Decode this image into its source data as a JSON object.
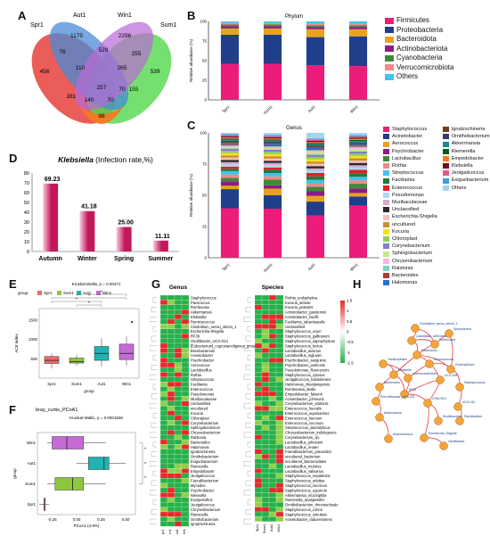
{
  "panels": {
    "A": "A",
    "B": "B",
    "C": "C",
    "D": "D",
    "E": "E",
    "F": "F",
    "G": "G",
    "H": "H"
  },
  "chart_data": [
    {
      "panel": "A",
      "type": "venn",
      "sets": [
        "Spr1",
        "Aut1",
        "Win1",
        "Sum1"
      ],
      "colors": [
        "#e8413c",
        "#4a8bd6",
        "#b86ad6",
        "#52d84b",
        "#f57a20"
      ],
      "regions": [
        {
          "id": "spr_only",
          "value": "456"
        },
        {
          "id": "aut_only",
          "value": "1175"
        },
        {
          "id": "win_only",
          "value": "2296"
        },
        {
          "id": "sum_only",
          "value": "539"
        },
        {
          "id": "spr_aut",
          "value": "76"
        },
        {
          "id": "aut_win",
          "value": "529"
        },
        {
          "id": "win_sum",
          "value": "255"
        },
        {
          "id": "spr_aut_win",
          "value": "110"
        },
        {
          "id": "aut_win_sum",
          "value": "265"
        },
        {
          "id": "win_sum2",
          "value": "70"
        },
        {
          "id": "sum_win",
          "value": "155"
        },
        {
          "id": "spr_win",
          "value": "281"
        },
        {
          "id": "all",
          "value": "257"
        },
        {
          "id": "spr_sum_x",
          "value": "140"
        },
        {
          "id": "aut_sum",
          "value": "70"
        },
        {
          "id": "spr_sum",
          "value": "88"
        }
      ]
    },
    {
      "panel": "B",
      "type": "bar",
      "title": "Phylum",
      "ylabel": "Relative abundance (%)",
      "categories": [
        "Spr1",
        "Sum1",
        "Aut1",
        "Win1"
      ],
      "series": [
        {
          "name": "Firmicutes",
          "color": "#ec1c7a",
          "values": [
            0.46,
            0.46,
            0.44,
            0.43
          ]
        },
        {
          "name": "Proteobacteria",
          "color": "#1f3f8a",
          "values": [
            0.37,
            0.37,
            0.36,
            0.38
          ]
        },
        {
          "name": "Bacteroidota",
          "color": "#eaa21b",
          "values": [
            0.08,
            0.08,
            0.1,
            0.09
          ]
        },
        {
          "name": "Actinobacteriota",
          "color": "#8b1c86",
          "values": [
            0.03,
            0.03,
            0.03,
            0.03
          ]
        },
        {
          "name": "Cyanobacteria",
          "color": "#3f8a3a",
          "values": [
            0.02,
            0.02,
            0.02,
            0.02
          ]
        },
        {
          "name": "Verrucomicrobiota",
          "color": "#f08a8a",
          "values": [
            0.02,
            0.02,
            0.02,
            0.02
          ]
        },
        {
          "name": "Others",
          "color": "#3fc3ef",
          "values": [
            0.02,
            0.02,
            0.03,
            0.03
          ]
        }
      ],
      "yticks": [
        "0",
        "25",
        "50",
        "75",
        "100"
      ]
    },
    {
      "panel": "C",
      "type": "bar",
      "title": "Genus",
      "ylabel": "Relative abundance (%)",
      "categories": [
        "Spr1",
        "Sum1",
        "Aut1",
        "Win1"
      ],
      "series": [
        {
          "name": "Staphylococcus",
          "color": "#ec1c7a",
          "values": [
            0.44,
            0.44,
            0.37,
            0.45
          ]
        },
        {
          "name": "Acinetobacter",
          "color": "#1f3f8a",
          "values": [
            0.17,
            0.12,
            0.12,
            0.08
          ]
        },
        {
          "name": "Aerococcus",
          "color": "#eaa21b",
          "values": [
            0.03,
            0.06,
            0.05,
            0.03
          ]
        },
        {
          "name": "Psychrobacter",
          "color": "#8b1c86",
          "values": [
            0.04,
            0.03,
            0.04,
            0.04
          ]
        },
        {
          "name": "Lactobacillus",
          "color": "#3f8a3a",
          "values": [
            0.03,
            0.05,
            0.04,
            0.04
          ]
        },
        {
          "name": "Rothia",
          "color": "#f08a8a",
          "values": [
            0.03,
            0.03,
            0.03,
            0.03
          ]
        },
        {
          "name": "Streptococcus",
          "color": "#3fc3ef",
          "values": [
            0.03,
            0.03,
            0.03,
            0.03
          ]
        },
        {
          "name": "Facklamia",
          "color": "#1b7d3a",
          "values": [
            0.02,
            0.03,
            0.03,
            0.03
          ]
        },
        {
          "name": "Enterococcus",
          "color": "#e51e25",
          "values": [
            0.02,
            0.02,
            0.03,
            0.03
          ]
        },
        {
          "name": "Pseudomonas",
          "color": "#a9d9f2",
          "values": [
            0.02,
            0.02,
            0.02,
            0.02
          ]
        },
        {
          "name": "Muribaculaceae",
          "color": "#d8a8d0",
          "values": [
            0.02,
            0.02,
            0.02,
            0.02
          ]
        },
        {
          "name": "Unclassified",
          "color": "#2a2a2a",
          "values": [
            0.02,
            0.02,
            0.02,
            0.02
          ]
        },
        {
          "name": "Escherichia-Shigella",
          "color": "#f4c0c0",
          "values": [
            0.02,
            0.02,
            0.02,
            0.02
          ]
        },
        {
          "name": "uncultured",
          "color": "#d18c2a",
          "values": [
            0.02,
            0.02,
            0.02,
            0.02
          ]
        },
        {
          "name": "Kocuria",
          "color": "#f7e11a",
          "values": [
            0.02,
            0.02,
            0.02,
            0.02
          ]
        },
        {
          "name": "Chloroplast",
          "color": "#8fcf5a",
          "values": [
            0.02,
            0.02,
            0.02,
            0.02
          ]
        },
        {
          "name": "Corynebacterium",
          "color": "#7f7fcf",
          "values": [
            0.02,
            0.02,
            0.02,
            0.02
          ]
        },
        {
          "name": "Sphingobacterium",
          "color": "#c6e88a",
          "values": [
            0.01,
            0.01,
            0.02,
            0.02
          ]
        },
        {
          "name": "Chryseobacterium",
          "color": "#f7b5e0",
          "values": [
            0.01,
            0.01,
            0.01,
            0.01
          ]
        },
        {
          "name": "Ralstonia",
          "color": "#7ad6c2",
          "values": [
            0.01,
            0.01,
            0.01,
            0.01
          ]
        },
        {
          "name": "Bacteroides",
          "color": "#b03a2e",
          "values": [
            0.01,
            0.01,
            0.01,
            0.01
          ]
        },
        {
          "name": "Halomonas",
          "color": "#2a6fd6",
          "values": [
            0.01,
            0.01,
            0.01,
            0.01
          ]
        },
        {
          "name": "Ignatzschineria",
          "color": "#6b3f1c",
          "values": [
            0.01,
            0.01,
            0.01,
            0.01
          ]
        },
        {
          "name": "Ornithobacterium",
          "color": "#3a3a6b",
          "values": [
            0.01,
            0.01,
            0.01,
            0.01
          ]
        },
        {
          "name": "Akkermansia",
          "color": "#1a8a8a",
          "values": [
            0.01,
            0.01,
            0.01,
            0.01
          ]
        },
        {
          "name": "Riemerella",
          "color": "#0a5a2a",
          "values": [
            0.01,
            0.01,
            0.01,
            0.01
          ]
        },
        {
          "name": "Empedobacter",
          "color": "#f27a1a",
          "values": [
            0.01,
            0.01,
            0.01,
            0.01
          ]
        },
        {
          "name": "Klebsiella",
          "color": "#7a0a1a",
          "values": [
            0.01,
            0.01,
            0.01,
            0.01
          ]
        },
        {
          "name": "Jeotgalicoccus",
          "color": "#e05a8a",
          "values": [
            0.01,
            0.01,
            0.01,
            0.01
          ]
        },
        {
          "name": "Exiguobacterium",
          "color": "#3aa0e0",
          "values": [
            0.01,
            0.01,
            0.01,
            0.01
          ]
        },
        {
          "name": "Others",
          "color": "#9fd6f0",
          "values": [
            0.01,
            0.02,
            0.05,
            0.02
          ]
        }
      ],
      "yticks": [
        "0",
        "25",
        "50",
        "75",
        "100"
      ]
    },
    {
      "panel": "D",
      "type": "bar",
      "title_italic": "Klebsiella",
      "title_rest": " (Infection rate,%)",
      "categories": [
        "Autumn",
        "Winter",
        "Spring",
        "Summer"
      ],
      "values": [
        69.23,
        41.18,
        25.0,
        11.11
      ],
      "value_labels": [
        "69.23",
        "41.18",
        "25.00",
        "11.11"
      ],
      "ylim": [
        0,
        80
      ],
      "yticks": [
        "0",
        "10",
        "20",
        "30",
        "40",
        "50",
        "60",
        "70",
        "80"
      ],
      "colors": [
        "#c2185b",
        "#f8cfe0"
      ]
    },
    {
      "panel": "E",
      "type": "box",
      "subtitle": "Kruskal-Wallis, p = 0.00471",
      "legend_title": "group",
      "groups": [
        "Spr1",
        "Sum1",
        "Aut1",
        "Win1"
      ],
      "colors": [
        "#f06a6a",
        "#8dc63f",
        "#21b3b3",
        "#c66ad6"
      ],
      "ylabel": "ACE index",
      "xlabel": "group",
      "yticks": [
        "500",
        "1000",
        "1500"
      ],
      "ylim": [
        0,
        1800
      ],
      "boxes": [
        {
          "min": 250,
          "q1": 380,
          "median": 460,
          "q3": 560,
          "max": 640
        },
        {
          "min": 330,
          "q1": 390,
          "median": 430,
          "q3": 520,
          "max": 600
        },
        {
          "min": 300,
          "q1": 460,
          "median": 640,
          "q3": 820,
          "max": 1040
        },
        {
          "min": 320,
          "q1": 480,
          "median": 640,
          "q3": 880,
          "max": 1080
        }
      ],
      "signif": [
        "*",
        "*",
        "*",
        "*"
      ]
    },
    {
      "panel": "F",
      "type": "box",
      "title": "bray_curtis_PCoA1",
      "subtitle": "Kruskal-Wallis, p = 0.0001508",
      "ylabel": "group",
      "xlabel": "PCoA1 (4.8%)",
      "groups": [
        "Win1",
        "Aut1",
        "Sum1",
        "Spr1"
      ],
      "colors": [
        "#c66ad6",
        "#21b3b3",
        "#8dc63f",
        "#f06a6a"
      ],
      "xticks": [
        "-0.25",
        "0.00",
        "0.25",
        "0.50"
      ],
      "xlim": [
        -0.4,
        0.6
      ],
      "boxes": [
        {
          "min": -0.3,
          "q1": -0.25,
          "median": -0.1,
          "q3": 0.07,
          "max": 0.3
        },
        {
          "min": 0.0,
          "q1": 0.12,
          "median": 0.28,
          "q3": 0.33,
          "max": 0.5
        },
        {
          "min": -0.3,
          "q1": -0.22,
          "median": -0.04,
          "q3": 0.07,
          "max": 0.3
        },
        {
          "min": -0.38,
          "q1": -0.33,
          "median": -0.33,
          "q3": -0.33,
          "max": -0.28
        }
      ],
      "signif": [
        "*",
        "*",
        "*"
      ]
    },
    {
      "panel": "G",
      "type": "heatmap",
      "left_title": "Genus",
      "right_title": "Species",
      "colorbar_ticks": [
        "1.5",
        "1",
        "0.5",
        "0",
        "-0.5",
        "-1",
        "-1.5"
      ],
      "genus": [
        "Staphylococcus",
        "Paracoccus",
        "Rombousia",
        "Akkermansia",
        "Klebsiella",
        "Ruminococcus",
        "Clostridium_sensu_stricto_1",
        "Escherichia-Shigella",
        "RF39",
        "Oscillibacter_UCG-014",
        "[Eubacterium]_coprostanoligenes_group",
        "Brevibacterium",
        "Acinetobacter",
        "Psychrobacter",
        "Aerococcus",
        "Lactobacillus",
        "Rothia",
        "Streptococcus",
        "Facklamia",
        "Enterococcus",
        "Pseudomonas",
        "Muribaculaceae",
        "Unclassified",
        "uncultured",
        "Kocuria",
        "Chloroplast",
        "Corynebacterium",
        "Sphingobacterium",
        "Chryseobacterium",
        "Ralstonia",
        "Bacteroides",
        "Halomonas",
        "Ignatzschineria",
        "Ornithobacterium",
        "Exiguobacterium",
        "Riemerella",
        "Empedobacter",
        "Jeotgalicoccus",
        "Faecalibacterium",
        "Myroides",
        "Psychrobacter",
        "Weissella",
        "Erysipelothrix",
        "Jeotgalicoccus",
        "Chryseobacterium",
        "Riemerella",
        "Ornithobacterium",
        "Ignatzschineria",
        "uncultured",
        "Bacteroides"
      ],
      "species": [
        "Rothia_endophytica",
        "Kocuria_atrinae",
        "Kocuria_palustris",
        "Acinetobacter_gandensis",
        "Acinetobacter_lwoffii",
        "Facklamia_tabacinasalis",
        "Unclassified",
        "Staphylococcus_sciuri",
        "Staphylococcus_gallinarum",
        "Staphylococcus_saprophyticus",
        "Staphylococcus_lentus",
        "Lactobacillus_aviarius",
        "Lactobacillus_ingluviei",
        "Psychrobacter_sanguinis",
        "Psychrobacter_pulmonis",
        "Pseudomonas_fluorescens",
        "Staphylococcus_xylosus",
        "Jeotgalicoccus_halotolerans",
        "Halomonas_zhanjiangensis",
        "Romboutsia_ilealis",
        "Empedobacter_falsenii",
        "Acinetobacter_johnsonii",
        "Corynebacterium_stationis",
        "Enterococcus_faecalis",
        "Enterococcus_aquimarinus",
        "Enterococcus_faecium",
        "Enterococcus_cecorum",
        "Streptococcus_alactolyticus",
        "Chryseobacterium_indologenes",
        "Corynebacterium_sp.",
        "Lactobacillus_johnsonii",
        "Lactobacillus_reuteri",
        "Faecalibacterium_prausnitzii",
        "uncultured_bacterium",
        "uncultured_Bacteroidales",
        "Lactobacillus_murinus",
        "Lactobacillus_salivarius",
        "Staphylococcus_nepalensis",
        "Staphylococcus_arlettae",
        "Staphylococcus_succinus",
        "Staphylococcus_equorum",
        "Akkermansia_muciniphila",
        "Riemerella_anatipestifer",
        "Ornithobacterium_rhinotracheale",
        "Staphylococcus_cohnii",
        "Staphylococcus_simulans",
        "Acinetobacter_radioresistens"
      ],
      "columns": [
        "Spr1",
        "Sum1",
        "Aut1",
        "Win1"
      ]
    },
    {
      "panel": "H",
      "type": "network",
      "node_color": "#f4a43a",
      "edge_color": "#e53a3a",
      "nodes": [
        {
          "id": "n1",
          "label": "Clostridium_sensu_stricto_1"
        },
        {
          "id": "n2",
          "label": "Candidatus_Arthromitus"
        },
        {
          "id": "n3",
          "label": "Romboutsia"
        },
        {
          "id": "n4",
          "label": "Sporosarcina"
        },
        {
          "id": "n5",
          "label": "Paracoccus"
        },
        {
          "id": "n6",
          "label": "Proteiniphilum"
        },
        {
          "id": "n7",
          "label": "Klebsiella"
        },
        {
          "id": "n8",
          "label": "UCG-005"
        },
        {
          "id": "n9",
          "label": "Staphylococcus"
        },
        {
          "id": "n10",
          "label": "RF39"
        },
        {
          "id": "n11",
          "label": "CHKCI001"
        },
        {
          "id": "n12",
          "label": "UCG-010"
        },
        {
          "id": "n13",
          "label": "Bacteroides"
        },
        {
          "id": "n14",
          "label": "Prevotellaceae_UCG-001"
        },
        {
          "id": "n15",
          "label": "Oscillospirales"
        },
        {
          "id": "n16",
          "label": "Lachnoclostridium"
        },
        {
          "id": "n17",
          "label": "Ruminococcus"
        },
        {
          "id": "n18",
          "label": "Akkermansia"
        },
        {
          "id": "n19",
          "label": "Shuttleworthia"
        },
        {
          "id": "n20",
          "label": "Paenibacillus"
        },
        {
          "id": "n21",
          "label": "Escherichia_Shigella"
        },
        {
          "id": "n22",
          "label": "Anaerotruncus"
        },
        {
          "id": "n23",
          "label": "Oscillibacter"
        }
      ]
    }
  ]
}
